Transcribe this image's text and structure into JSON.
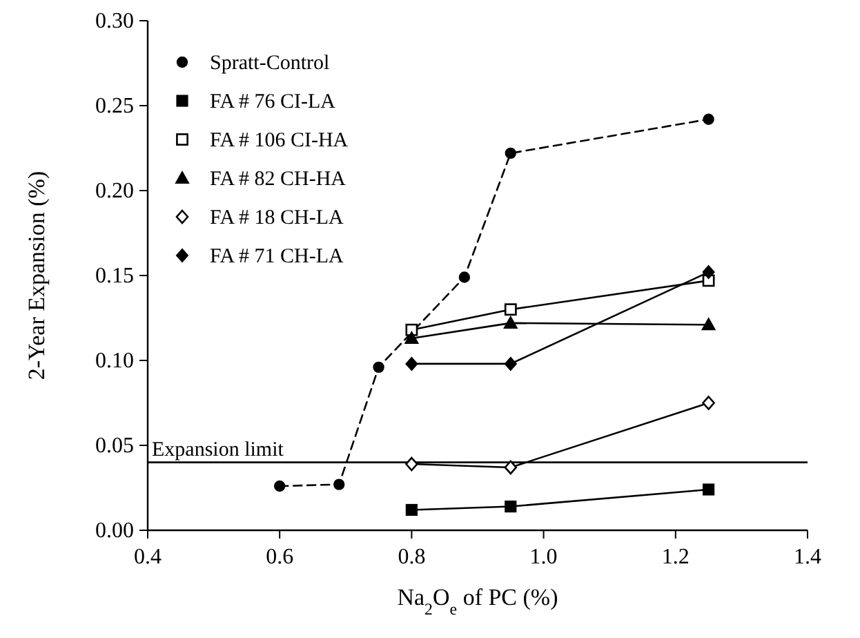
{
  "chart_data": {
    "type": "line",
    "xlabel": "Na$_{2}$O$_{e}$ of PC (%)",
    "ylabel": "2-Year Expansion (%)",
    "xlim": [
      0.4,
      1.4
    ],
    "xticks": [
      {
        "value": 0.4,
        "label": "0.4"
      },
      {
        "value": 0.6,
        "label": "0.6"
      },
      {
        "value": 0.8,
        "label": "0.8"
      },
      {
        "value": 1.0,
        "label": "1.0"
      },
      {
        "value": 1.2,
        "label": "1.2"
      },
      {
        "value": 1.4,
        "label": "1.4"
      }
    ],
    "ylim": [
      0,
      0.3
    ],
    "yticks": [
      {
        "value": 0,
        "label": "0.00"
      },
      {
        "value": 0.05,
        "label": "0.05"
      },
      {
        "value": 0.1,
        "label": "0.10"
      },
      {
        "value": 0.15,
        "label": "0.15"
      },
      {
        "value": 0.2,
        "label": "0.20"
      },
      {
        "value": 0.25,
        "label": "0.25"
      },
      {
        "value": 0.3,
        "label": "0.30"
      }
    ],
    "legend": "top left",
    "grid": false,
    "ref_lines": [
      {
        "axis": "y",
        "value": 0.04,
        "label": "Expansion limit",
        "color": "#000000"
      }
    ],
    "series": [
      {
        "name": "Spratt-Control",
        "color": "#000000",
        "marker": "circle",
        "line_style": "dashed",
        "x": [
          0.6,
          0.69,
          0.75,
          0.88,
          0.95,
          1.25
        ],
        "values": [
          0.026,
          0.027,
          0.096,
          0.149,
          0.222,
          0.242
        ]
      },
      {
        "name": "FA # 76 CI-LA",
        "color": "#000000",
        "marker": "square",
        "line_style": "solid",
        "x": [
          0.8,
          0.95,
          1.25
        ],
        "values": [
          0.012,
          0.014,
          0.024
        ]
      },
      {
        "name": "FA # 106 CI-HA",
        "color": "#000000",
        "marker": "square-open",
        "line_style": "solid",
        "x": [
          0.8,
          0.95,
          1.25
        ],
        "values": [
          0.118,
          0.13,
          0.147
        ]
      },
      {
        "name": "FA # 82 CH-HA",
        "color": "#000000",
        "marker": "triangle",
        "line_style": "solid",
        "x": [
          0.8,
          0.95,
          1.25
        ],
        "values": [
          0.113,
          0.122,
          0.121
        ]
      },
      {
        "name": "FA # 18 CH-LA",
        "color": "#000000",
        "marker": "diamond-open",
        "line_style": "solid",
        "x": [
          0.8,
          0.95,
          1.25
        ],
        "values": [
          0.039,
          0.037,
          0.075
        ]
      },
      {
        "name": "FA # 71 CH-LA",
        "color": "#000000",
        "marker": "diamond",
        "line_style": "solid",
        "x": [
          0.8,
          0.95,
          1.25
        ],
        "values": [
          0.098,
          0.098,
          0.152
        ]
      }
    ]
  }
}
